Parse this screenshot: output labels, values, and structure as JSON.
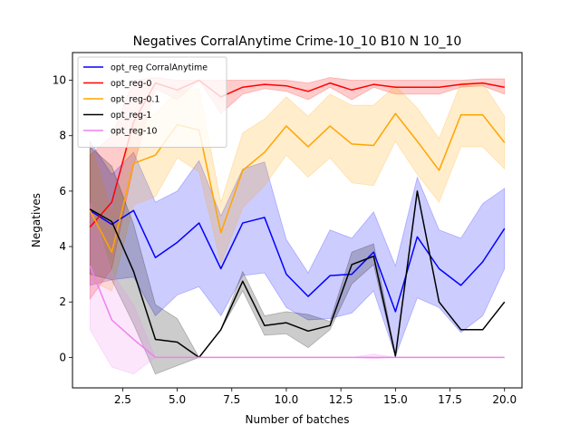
{
  "chart_data": {
    "type": "line",
    "title": "Negatives CorralAnytime Crime-10_10 B10 N 10_10",
    "xlabel": "Number of batches",
    "ylabel": "Negatives",
    "xlim": [
      0.2,
      20.8
    ],
    "ylim": [
      -1.1,
      11.0
    ],
    "xticks": [
      2.5,
      5.0,
      7.5,
      10.0,
      12.5,
      15.0,
      17.5,
      20.0
    ],
    "xtick_labels": [
      "2.5",
      "5.0",
      "7.5",
      "10.0",
      "12.5",
      "15.0",
      "17.5",
      "20.0"
    ],
    "yticks": [
      0,
      2,
      4,
      6,
      8,
      10
    ],
    "ytick_labels": [
      "0",
      "2",
      "4",
      "6",
      "8",
      "10"
    ],
    "grid": false,
    "legend_position": "top-left",
    "x": [
      1,
      2,
      3,
      4,
      5,
      6,
      7,
      8,
      9,
      10,
      11,
      12,
      13,
      14,
      15,
      16,
      17,
      18,
      19,
      20
    ],
    "series": [
      {
        "name": "opt_reg CorralAnytime",
        "color": "#0000ff",
        "values": [
          5.3,
          4.8,
          5.3,
          3.6,
          4.15,
          4.85,
          3.2,
          4.85,
          5.05,
          3.0,
          2.2,
          2.95,
          3.0,
          3.8,
          1.65,
          4.35,
          3.2,
          2.6,
          3.45,
          4.65
        ],
        "lower": [
          2.6,
          2.8,
          2.9,
          1.5,
          2.25,
          2.55,
          1.5,
          2.95,
          3.05,
          1.8,
          1.35,
          1.4,
          1.6,
          2.4,
          0.05,
          2.15,
          1.8,
          0.9,
          1.5,
          3.2
        ],
        "upper": [
          7.8,
          6.6,
          7.4,
          5.6,
          6.0,
          7.1,
          5.1,
          6.8,
          7.05,
          4.25,
          3.05,
          4.6,
          4.3,
          5.25,
          3.3,
          6.5,
          4.6,
          4.3,
          5.55,
          6.1
        ]
      },
      {
        "name": "opt_reg-0",
        "color": "#ff0000",
        "values": [
          4.7,
          5.6,
          8.5,
          9.9,
          9.65,
          10.0,
          9.4,
          9.75,
          9.85,
          9.8,
          9.6,
          9.9,
          9.65,
          9.85,
          9.75,
          9.75,
          9.75,
          9.85,
          9.9,
          9.75
        ],
        "lower": [
          2.1,
          3.2,
          6.9,
          9.7,
          9.3,
          10.0,
          8.8,
          9.5,
          9.7,
          9.6,
          9.3,
          9.75,
          9.3,
          9.75,
          9.5,
          9.5,
          9.5,
          9.75,
          9.8,
          9.5
        ],
        "upper": [
          7.3,
          8.0,
          10.0,
          10.1,
          10.0,
          10.0,
          10.0,
          10.0,
          10.0,
          10.0,
          9.9,
          10.1,
          10.0,
          10.0,
          10.0,
          10.0,
          10.0,
          10.0,
          10.05,
          10.05
        ]
      },
      {
        "name": "opt_reg-0.1",
        "color": "#ffa500",
        "values": [
          5.3,
          3.8,
          7.0,
          7.3,
          8.4,
          8.2,
          4.5,
          6.75,
          7.4,
          8.35,
          7.6,
          8.35,
          7.7,
          7.65,
          8.8,
          7.8,
          6.75,
          8.75,
          8.75,
          7.75
        ],
        "lower": [
          2.8,
          2.4,
          5.5,
          5.8,
          7.2,
          6.7,
          3.4,
          5.4,
          6.2,
          7.3,
          6.5,
          7.2,
          6.3,
          6.2,
          7.8,
          6.6,
          5.6,
          7.6,
          7.6,
          6.8
        ],
        "upper": [
          7.8,
          5.2,
          8.5,
          8.8,
          9.6,
          9.7,
          5.6,
          8.1,
          8.6,
          9.4,
          8.7,
          9.5,
          9.1,
          9.1,
          9.8,
          9.0,
          7.9,
          9.9,
          9.9,
          8.7
        ]
      },
      {
        "name": "opt_reg-1",
        "color": "#000000",
        "values": [
          5.35,
          4.9,
          3.1,
          0.65,
          0.55,
          0.0,
          1.0,
          2.75,
          1.15,
          1.25,
          0.95,
          1.15,
          3.35,
          3.65,
          0.05,
          6.0,
          2.0,
          1.0,
          1.0,
          2.0
        ],
        "lower": [
          3.0,
          2.8,
          1.2,
          -0.6,
          -0.3,
          0.0,
          1.0,
          2.4,
          0.8,
          0.85,
          0.35,
          1.0,
          2.65,
          3.35,
          0.0,
          6.0,
          2.0,
          1.0,
          1.0,
          2.0
        ],
        "upper": [
          7.6,
          6.9,
          4.8,
          1.9,
          1.4,
          0.0,
          1.0,
          3.1,
          1.5,
          1.65,
          1.55,
          1.3,
          3.8,
          4.1,
          0.1,
          6.0,
          2.0,
          1.0,
          1.0,
          2.0
        ]
      },
      {
        "name": "opt_reg-10",
        "color": "#ee82ee",
        "values": [
          3.3,
          1.35,
          0.65,
          0.0,
          0.0,
          0.0,
          0.0,
          0.0,
          0.0,
          0.0,
          0.0,
          0.0,
          0.0,
          0.0,
          0.0,
          0.0,
          0.0,
          0.0,
          0.0,
          0.0
        ],
        "lower": [
          1.0,
          -0.35,
          -0.6,
          0.0,
          0.0,
          0.0,
          0.0,
          0.0,
          0.0,
          0.0,
          0.0,
          0.0,
          0.0,
          -0.05,
          0.0,
          0.0,
          0.0,
          0.0,
          0.0,
          0.0
        ],
        "upper": [
          5.6,
          3.05,
          1.9,
          0.0,
          0.0,
          0.0,
          0.0,
          0.0,
          0.0,
          0.0,
          0.0,
          0.0,
          0.0,
          0.12,
          0.0,
          0.0,
          0.0,
          0.0,
          0.0,
          0.0
        ]
      }
    ]
  }
}
